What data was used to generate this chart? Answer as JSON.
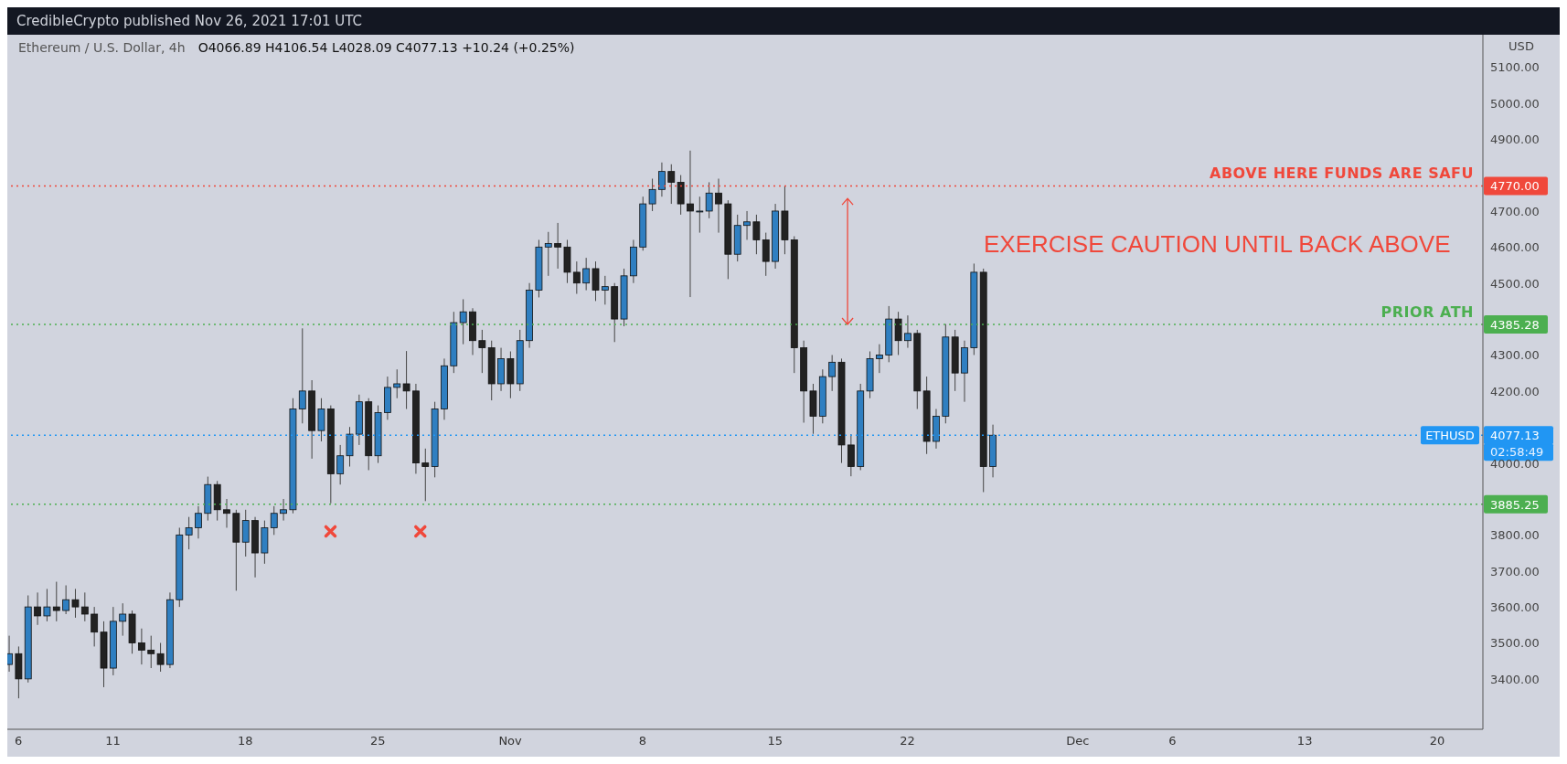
{
  "chart_data": {
    "type": "candlestick",
    "title": "Ethereum / U.S. Dollar, 4h",
    "subtitle": "O4066.89 H4106.54 L4028.09 C4077.13 +10.24 (+0.25%)",
    "ylabel": "USD",
    "annotations": [
      "CredibleCrypto published Nov 26, 2021 17:01 UTC",
      "EXERCISE CAUTION UNTIL BACK ABOVE",
      "02:58:49"
    ],
    "colors": [
      "#2f7fc1",
      "#222222",
      "#2f7fc1",
      "#222222",
      "#2f7fc1",
      "#222222",
      "#2f7fc1",
      "#222222",
      "#222222",
      "#222222",
      "#222222",
      "#2f7fc1",
      "#2f7fc1",
      "#222222",
      "#222222",
      "#222222",
      "#222222",
      "#2f7fc1",
      "#2f7fc1",
      "#2f7fc1",
      "#2f7fc1",
      "#2f7fc1",
      "#222222",
      "#222222",
      "#222222",
      "#2f7fc1",
      "#222222",
      "#2f7fc1",
      "#2f7fc1",
      "#2f7fc1",
      "#2f7fc1",
      "#2f7fc1",
      "#222222",
      "#2f7fc1",
      "#222222",
      "#2f7fc1",
      "#2f7fc1",
      "#2f7fc1",
      "#222222",
      "#2f7fc1",
      "#2f7fc1",
      "#2f7fc1",
      "#222222",
      "#222222",
      "#222222",
      "#2f7fc1",
      "#2f7fc1",
      "#2f7fc1",
      "#2f7fc1",
      "#222222",
      "#222222",
      "#222222",
      "#2f7fc1",
      "#222222",
      "#2f7fc1",
      "#2f7fc1",
      "#2f7fc1",
      "#2f7fc1",
      "#222222",
      "#222222",
      "#222222",
      "#2f7fc1",
      "#222222",
      "#2f7fc1",
      "#222222",
      "#2f7fc1",
      "#2f7fc1",
      "#2f7fc1",
      "#2f7fc1",
      "#2f7fc1",
      "#222222",
      "#222222",
      "#222222",
      "#2f7fc1",
      "#2f7fc1",
      "#222222",
      "#222222",
      "#2f7fc1",
      "#2f7fc1",
      "#222222",
      "#222222",
      "#2f7fc1",
      "#222222",
      "#222222",
      "#222222",
      "#222222",
      "#2f7fc1",
      "#2f7fc1",
      "#222222",
      "#222222",
      "#2f7fc1",
      "#2f7fc1",
      "#2f7fc1",
      "#2f7fc1",
      "#222222",
      "#2f7fc1",
      "#222222",
      "#222222",
      "#2f7fc1",
      "#2f7fc1",
      "#222222",
      "#2f7fc1",
      "#2f7fc1",
      "#222222",
      "#2f7fc1"
    ],
    "x": [
      "2021-10-05T12:00",
      "2021-10-06T00:00",
      "2021-10-06T12:00",
      "2021-10-07T00:00",
      "2021-10-07T12:00",
      "2021-10-08T00:00",
      "2021-10-08T12:00",
      "2021-10-09T00:00",
      "2021-10-09T12:00",
      "2021-10-10T00:00",
      "2021-10-10T12:00",
      "2021-10-11T00:00",
      "2021-10-11T12:00",
      "2021-10-12T00:00",
      "2021-10-12T12:00",
      "2021-10-13T00:00",
      "2021-10-13T12:00",
      "2021-10-14T00:00",
      "2021-10-14T12:00",
      "2021-10-15T00:00",
      "2021-10-15T12:00",
      "2021-10-16T00:00",
      "2021-10-16T12:00",
      "2021-10-17T00:00",
      "2021-10-17T12:00",
      "2021-10-18T00:00",
      "2021-10-18T12:00",
      "2021-10-19T00:00",
      "2021-10-19T12:00",
      "2021-10-20T00:00",
      "2021-10-20T12:00",
      "2021-10-21T00:00",
      "2021-10-21T12:00",
      "2021-10-22T00:00",
      "2021-10-22T12:00",
      "2021-10-23T00:00",
      "2021-10-23T12:00",
      "2021-10-24T00:00",
      "2021-10-24T12:00",
      "2021-10-25T00:00",
      "2021-10-25T12:00",
      "2021-10-26T00:00",
      "2021-10-26T12:00",
      "2021-10-27T00:00",
      "2021-10-27T12:00",
      "2021-10-28T00:00",
      "2021-10-28T12:00",
      "2021-10-29T00:00",
      "2021-10-29T12:00",
      "2021-10-30T00:00",
      "2021-10-30T12:00",
      "2021-10-31T00:00",
      "2021-10-31T12:00",
      "2021-11-01T00:00",
      "2021-11-01T12:00",
      "2021-11-02T00:00",
      "2021-11-02T12:00",
      "2021-11-03T00:00",
      "2021-11-03T12:00",
      "2021-11-04T00:00",
      "2021-11-04T12:00",
      "2021-11-05T00:00",
      "2021-11-05T12:00",
      "2021-11-06T00:00",
      "2021-11-06T12:00",
      "2021-11-07T00:00",
      "2021-11-07T12:00",
      "2021-11-08T00:00",
      "2021-11-08T12:00",
      "2021-11-09T00:00",
      "2021-11-09T12:00",
      "2021-11-10T00:00",
      "2021-11-10T12:00",
      "2021-11-11T00:00",
      "2021-11-11T12:00",
      "2021-11-12T00:00",
      "2021-11-12T12:00",
      "2021-11-13T00:00",
      "2021-11-13T12:00",
      "2021-11-14T00:00",
      "2021-11-14T12:00",
      "2021-11-15T00:00",
      "2021-11-15T12:00",
      "2021-11-16T00:00",
      "2021-11-16T12:00",
      "2021-11-17T00:00",
      "2021-11-17T12:00",
      "2021-11-18T00:00",
      "2021-11-18T12:00",
      "2021-11-19T00:00",
      "2021-11-19T12:00",
      "2021-11-20T00:00",
      "2021-11-20T12:00",
      "2021-11-21T00:00",
      "2021-11-21T12:00",
      "2021-11-22T00:00",
      "2021-11-22T12:00",
      "2021-11-23T00:00",
      "2021-11-23T12:00",
      "2021-11-24T00:00",
      "2021-11-24T12:00",
      "2021-11-25T00:00",
      "2021-11-25T12:00",
      "2021-11-26T00:00",
      "2021-11-26T12:00"
    ],
    "ohlc": [
      [
        3440,
        3520,
        3420,
        3470
      ],
      [
        3470,
        3490,
        3346,
        3400
      ],
      [
        3400,
        3632,
        3390,
        3600
      ],
      [
        3600,
        3640,
        3550,
        3575
      ],
      [
        3575,
        3650,
        3560,
        3600
      ],
      [
        3600,
        3670,
        3560,
        3590
      ],
      [
        3590,
        3660,
        3580,
        3620
      ],
      [
        3620,
        3650,
        3570,
        3600
      ],
      [
        3600,
        3640,
        3560,
        3580
      ],
      [
        3580,
        3600,
        3490,
        3530
      ],
      [
        3530,
        3560,
        3377,
        3430
      ],
      [
        3430,
        3600,
        3410,
        3560
      ],
      [
        3560,
        3610,
        3520,
        3580
      ],
      [
        3580,
        3590,
        3470,
        3500
      ],
      [
        3500,
        3540,
        3440,
        3480
      ],
      [
        3480,
        3520,
        3430,
        3470
      ],
      [
        3470,
        3500,
        3420,
        3440
      ],
      [
        3440,
        3640,
        3430,
        3620
      ],
      [
        3620,
        3820,
        3600,
        3800
      ],
      [
        3800,
        3850,
        3760,
        3820
      ],
      [
        3820,
        3880,
        3790,
        3860
      ],
      [
        3860,
        3962,
        3840,
        3940
      ],
      [
        3940,
        3950,
        3840,
        3870
      ],
      [
        3870,
        3900,
        3820,
        3860
      ],
      [
        3860,
        3870,
        3645,
        3780
      ],
      [
        3780,
        3870,
        3740,
        3840
      ],
      [
        3840,
        3850,
        3682,
        3750
      ],
      [
        3750,
        3840,
        3720,
        3820
      ],
      [
        3820,
        3880,
        3800,
        3860
      ],
      [
        3860,
        3900,
        3840,
        3870
      ],
      [
        3870,
        4180,
        3860,
        4150
      ],
      [
        4150,
        4374,
        4110,
        4200
      ],
      [
        4200,
        4230,
        4012,
        4090
      ],
      [
        4090,
        4180,
        4060,
        4150
      ],
      [
        4150,
        4160,
        3888,
        3970
      ],
      [
        3970,
        4050,
        3940,
        4020
      ],
      [
        4020,
        4100,
        3990,
        4080
      ],
      [
        4080,
        4190,
        4050,
        4170
      ],
      [
        4170,
        4180,
        3980,
        4020
      ],
      [
        4020,
        4160,
        4000,
        4140
      ],
      [
        4140,
        4240,
        4120,
        4210
      ],
      [
        4210,
        4260,
        4180,
        4220
      ],
      [
        4220,
        4311,
        4150,
        4200
      ],
      [
        4200,
        4220,
        3970,
        4000
      ],
      [
        4000,
        4040,
        3894,
        3990
      ],
      [
        3990,
        4170,
        3960,
        4150
      ],
      [
        4150,
        4290,
        4120,
        4270
      ],
      [
        4270,
        4420,
        4250,
        4390
      ],
      [
        4390,
        4455,
        4330,
        4420
      ],
      [
        4420,
        4430,
        4300,
        4340
      ],
      [
        4340,
        4370,
        4250,
        4320
      ],
      [
        4320,
        4340,
        4174,
        4220
      ],
      [
        4220,
        4320,
        4200,
        4290
      ],
      [
        4290,
        4310,
        4180,
        4220
      ],
      [
        4220,
        4370,
        4200,
        4340
      ],
      [
        4340,
        4500,
        4320,
        4480
      ],
      [
        4480,
        4620,
        4460,
        4600
      ],
      [
        4600,
        4642,
        4520,
        4610
      ],
      [
        4610,
        4667,
        4540,
        4600
      ],
      [
        4600,
        4620,
        4500,
        4530
      ],
      [
        4530,
        4560,
        4470,
        4500
      ],
      [
        4500,
        4570,
        4480,
        4540
      ],
      [
        4540,
        4560,
        4450,
        4480
      ],
      [
        4480,
        4520,
        4440,
        4490
      ],
      [
        4490,
        4500,
        4336,
        4400
      ],
      [
        4400,
        4540,
        4380,
        4520
      ],
      [
        4520,
        4620,
        4500,
        4600
      ],
      [
        4600,
        4740,
        4590,
        4720
      ],
      [
        4720,
        4790,
        4700,
        4760
      ],
      [
        4760,
        4835,
        4740,
        4810
      ],
      [
        4810,
        4830,
        4720,
        4780
      ],
      [
        4780,
        4800,
        4690,
        4720
      ],
      [
        4720,
        4868,
        4461,
        4700
      ],
      [
        4700,
        4740,
        4640,
        4700
      ],
      [
        4700,
        4780,
        4680,
        4750
      ],
      [
        4750,
        4790,
        4640,
        4720
      ],
      [
        4720,
        4730,
        4511,
        4580
      ],
      [
        4580,
        4690,
        4560,
        4660
      ],
      [
        4660,
        4700,
        4620,
        4670
      ],
      [
        4670,
        4690,
        4580,
        4620
      ],
      [
        4620,
        4640,
        4520,
        4560
      ],
      [
        4560,
        4720,
        4540,
        4700
      ],
      [
        4700,
        4770,
        4580,
        4620
      ],
      [
        4620,
        4630,
        4250,
        4320
      ],
      [
        4320,
        4340,
        4112,
        4200
      ],
      [
        4200,
        4220,
        4081,
        4130
      ],
      [
        4130,
        4260,
        4110,
        4240
      ],
      [
        4240,
        4300,
        4200,
        4280
      ],
      [
        4280,
        4290,
        4000,
        4050
      ],
      [
        4050,
        4080,
        3963,
        3990
      ],
      [
        3990,
        4220,
        3980,
        4200
      ],
      [
        4200,
        4310,
        4180,
        4290
      ],
      [
        4290,
        4330,
        4250,
        4300
      ],
      [
        4300,
        4436,
        4280,
        4400
      ],
      [
        4400,
        4420,
        4300,
        4340
      ],
      [
        4340,
        4410,
        4320,
        4360
      ],
      [
        4360,
        4370,
        4150,
        4200
      ],
      [
        4200,
        4240,
        4025,
        4060
      ],
      [
        4060,
        4150,
        4040,
        4130
      ],
      [
        4130,
        4386,
        4110,
        4350
      ],
      [
        4350,
        4370,
        4200,
        4250
      ],
      [
        4250,
        4340,
        4170,
        4320
      ],
      [
        4320,
        4554,
        4300,
        4530
      ],
      [
        4530,
        4540,
        3919,
        3990
      ],
      [
        3990,
        4106.54,
        3960,
        4077.13
      ]
    ],
    "xlim": [
      "2021-10-05T10:00",
      "2021-12-22T10:00"
    ],
    "xticks": [
      {
        "value": "2021-10-06",
        "label": "6"
      },
      {
        "value": "2021-10-11",
        "label": "11"
      },
      {
        "value": "2021-10-18",
        "label": "18"
      },
      {
        "value": "2021-10-25",
        "label": "25"
      },
      {
        "value": "2021-11-01",
        "label": "Nov"
      },
      {
        "value": "2021-11-08",
        "label": "8"
      },
      {
        "value": "2021-11-15",
        "label": "15"
      },
      {
        "value": "2021-11-22",
        "label": "22"
      },
      {
        "value": "2021-12-01",
        "label": "Dec"
      },
      {
        "value": "2021-12-06",
        "label": "6"
      },
      {
        "value": "2021-12-13",
        "label": "13"
      },
      {
        "value": "2021-12-20",
        "label": "20"
      }
    ],
    "ylim": [
      3260,
      5190
    ],
    "yticks": [
      {
        "value": 3400,
        "label": "3400.00"
      },
      {
        "value": 3500,
        "label": "3500.00"
      },
      {
        "value": 3600,
        "label": "3600.00"
      },
      {
        "value": 3700,
        "label": "3700.00"
      },
      {
        "value": 3800,
        "label": "3800.00"
      },
      {
        "value": 4000,
        "label": "4000.00"
      },
      {
        "value": 4200,
        "label": "4200.00"
      },
      {
        "value": 4300,
        "label": "4300.00"
      },
      {
        "value": 4500,
        "label": "4500.00"
      },
      {
        "value": 4600,
        "label": "4600.00"
      },
      {
        "value": 4700,
        "label": "4700.00"
      },
      {
        "value": 4900,
        "label": "4900.00"
      },
      {
        "value": 5000,
        "label": "5000.00"
      },
      {
        "value": 5100,
        "label": "5100.00"
      },
      {
        "value": 4770,
        "label": "4770.00"
      },
      {
        "value": 4385.28,
        "label": "4385.28"
      },
      {
        "value": 4077.13,
        "label": "4077.13"
      },
      {
        "value": 3885.25,
        "label": "3885.25"
      }
    ],
    "ref_lines": [
      {
        "axis": "y",
        "value": 4770,
        "label": "ABOVE HERE FUNDS ARE SAFU",
        "color": "#f0483b",
        "line_style": "dotted"
      },
      {
        "axis": "y",
        "value": 4385.28,
        "label": "PRIOR ATH",
        "color": "#4caf50",
        "line_style": "dotted"
      },
      {
        "axis": "y",
        "value": 4077.13,
        "label": "ETHUSD",
        "color": "#2196f3",
        "line_style": "dotted"
      },
      {
        "axis": "y",
        "value": 3885.25,
        "label": null,
        "color": "#4caf50",
        "line_style": "dotted"
      }
    ]
  }
}
